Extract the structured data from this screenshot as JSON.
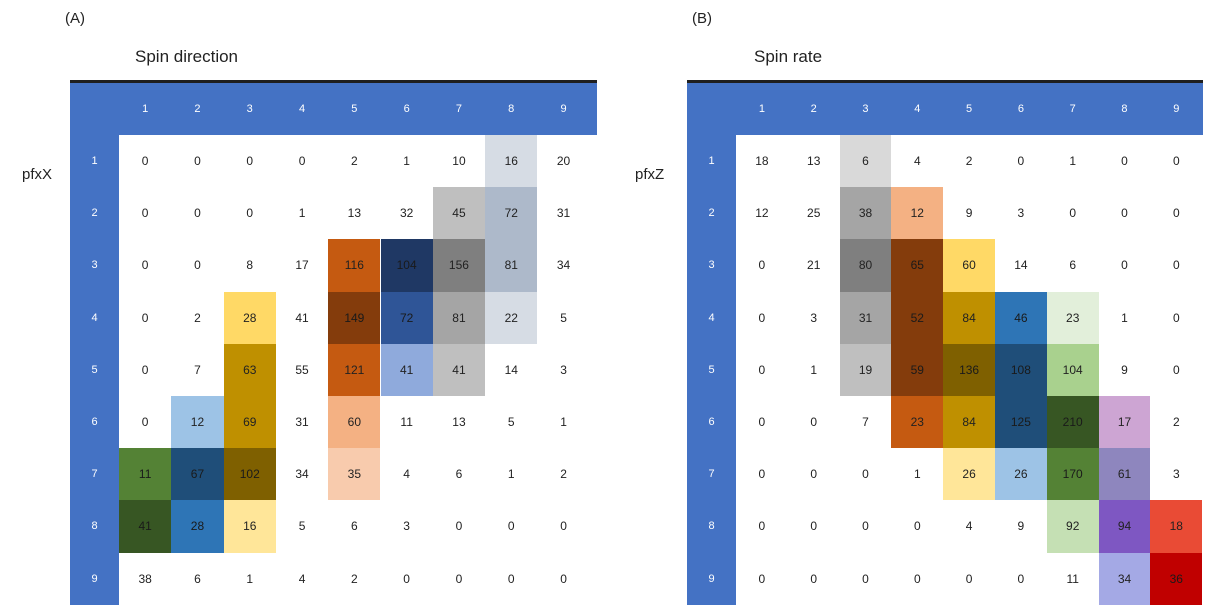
{
  "chart_data": [
    {
      "type": "heatmap",
      "panel_label": "(A)",
      "title": "Spin direction",
      "row_label": "pfxX",
      "columns": [
        "1",
        "2",
        "3",
        "4",
        "5",
        "6",
        "7",
        "8",
        "9"
      ],
      "rows": [
        "1",
        "2",
        "3",
        "4",
        "5",
        "6",
        "7",
        "8",
        "9"
      ],
      "values": [
        [
          0,
          0,
          0,
          0,
          2,
          1,
          10,
          16,
          20
        ],
        [
          0,
          0,
          0,
          1,
          13,
          32,
          45,
          72,
          31
        ],
        [
          0,
          0,
          8,
          17,
          116,
          104,
          156,
          81,
          34
        ],
        [
          0,
          2,
          28,
          41,
          149,
          72,
          81,
          22,
          5
        ],
        [
          0,
          7,
          63,
          55,
          121,
          41,
          41,
          14,
          3
        ],
        [
          0,
          12,
          69,
          31,
          60,
          11,
          13,
          5,
          1
        ],
        [
          11,
          67,
          102,
          34,
          35,
          4,
          6,
          1,
          2
        ],
        [
          41,
          28,
          16,
          5,
          6,
          3,
          0,
          0,
          0
        ],
        [
          38,
          6,
          1,
          4,
          2,
          0,
          0,
          0,
          0
        ]
      ],
      "colors": [
        [
          "",
          "",
          "",
          "",
          "",
          "",
          "",
          "#d6dce4",
          ""
        ],
        [
          "",
          "",
          "",
          "",
          "",
          "",
          "#bfbfbf",
          "#adb9ca",
          ""
        ],
        [
          "",
          "",
          "",
          "",
          "#c55a11",
          "#1f3864",
          "#7f7f7f",
          "#adb9ca",
          ""
        ],
        [
          "",
          "",
          "#ffd966",
          "",
          "#843c0c",
          "#2f5597",
          "#a5a5a5",
          "#d6dce4",
          ""
        ],
        [
          "",
          "",
          "#bf9000",
          "",
          "#c55a11",
          "#8faadc",
          "#bfbfbf",
          "",
          ""
        ],
        [
          "",
          "#9dc3e6",
          "#bf9000",
          "",
          "#f4b183",
          "",
          "",
          "",
          ""
        ],
        [
          "#548235",
          "#1f4e79",
          "#7f6000",
          "",
          "#f8cbad",
          "",
          "",
          "",
          ""
        ],
        [
          "#375623",
          "#2e75b6",
          "#ffe699",
          "",
          "",
          "",
          "",
          "",
          ""
        ],
        [
          "",
          "",
          "",
          "",
          "",
          "",
          "",
          "",
          ""
        ]
      ]
    },
    {
      "type": "heatmap",
      "panel_label": "(B)",
      "title": "Spin rate",
      "row_label": "pfxZ",
      "columns": [
        "1",
        "2",
        "3",
        "4",
        "5",
        "6",
        "7",
        "8",
        "9"
      ],
      "rows": [
        "1",
        "2",
        "3",
        "4",
        "5",
        "6",
        "7",
        "8",
        "9"
      ],
      "values": [
        [
          18,
          13,
          6,
          4,
          2,
          0,
          1,
          0,
          0
        ],
        [
          12,
          25,
          38,
          12,
          9,
          3,
          0,
          0,
          0
        ],
        [
          0,
          21,
          80,
          65,
          60,
          14,
          6,
          0,
          0
        ],
        [
          0,
          3,
          31,
          52,
          84,
          46,
          23,
          1,
          0
        ],
        [
          0,
          1,
          19,
          59,
          136,
          108,
          104,
          9,
          0
        ],
        [
          0,
          0,
          7,
          23,
          84,
          125,
          210,
          17,
          2
        ],
        [
          0,
          0,
          0,
          1,
          26,
          26,
          170,
          61,
          3
        ],
        [
          0,
          0,
          0,
          0,
          4,
          9,
          92,
          94,
          18
        ],
        [
          0,
          0,
          0,
          0,
          0,
          0,
          11,
          34,
          36
        ]
      ],
      "colors": [
        [
          "",
          "",
          "#d9d9d9",
          "",
          "",
          "",
          "",
          "",
          ""
        ],
        [
          "",
          "",
          "#a5a5a5",
          "#f4b183",
          "",
          "",
          "",
          "",
          ""
        ],
        [
          "",
          "",
          "#7f7f7f",
          "#843c0c",
          "#ffd966",
          "",
          "",
          "",
          ""
        ],
        [
          "",
          "",
          "#a5a5a5",
          "#843c0c",
          "#bf9000",
          "#2e75b6",
          "#e2efda",
          "",
          ""
        ],
        [
          "",
          "",
          "#bfbfbf",
          "#843c0c",
          "#7f6000",
          "#1f4e79",
          "#a9d18e",
          "",
          ""
        ],
        [
          "",
          "",
          "",
          "#c55a11",
          "#bf9000",
          "#1f4e79",
          "#375623",
          "#cda5d3",
          ""
        ],
        [
          "",
          "",
          "",
          "",
          "#ffe699",
          "#9dc3e6",
          "#548235",
          "#8e86be",
          ""
        ],
        [
          "",
          "",
          "",
          "",
          "",
          "",
          "#c5e0b4",
          "#7e57c2",
          "#e94b35"
        ],
        [
          "",
          "",
          "",
          "",
          "",
          "",
          "",
          "#a4a9e5",
          "#c00000"
        ]
      ]
    }
  ]
}
